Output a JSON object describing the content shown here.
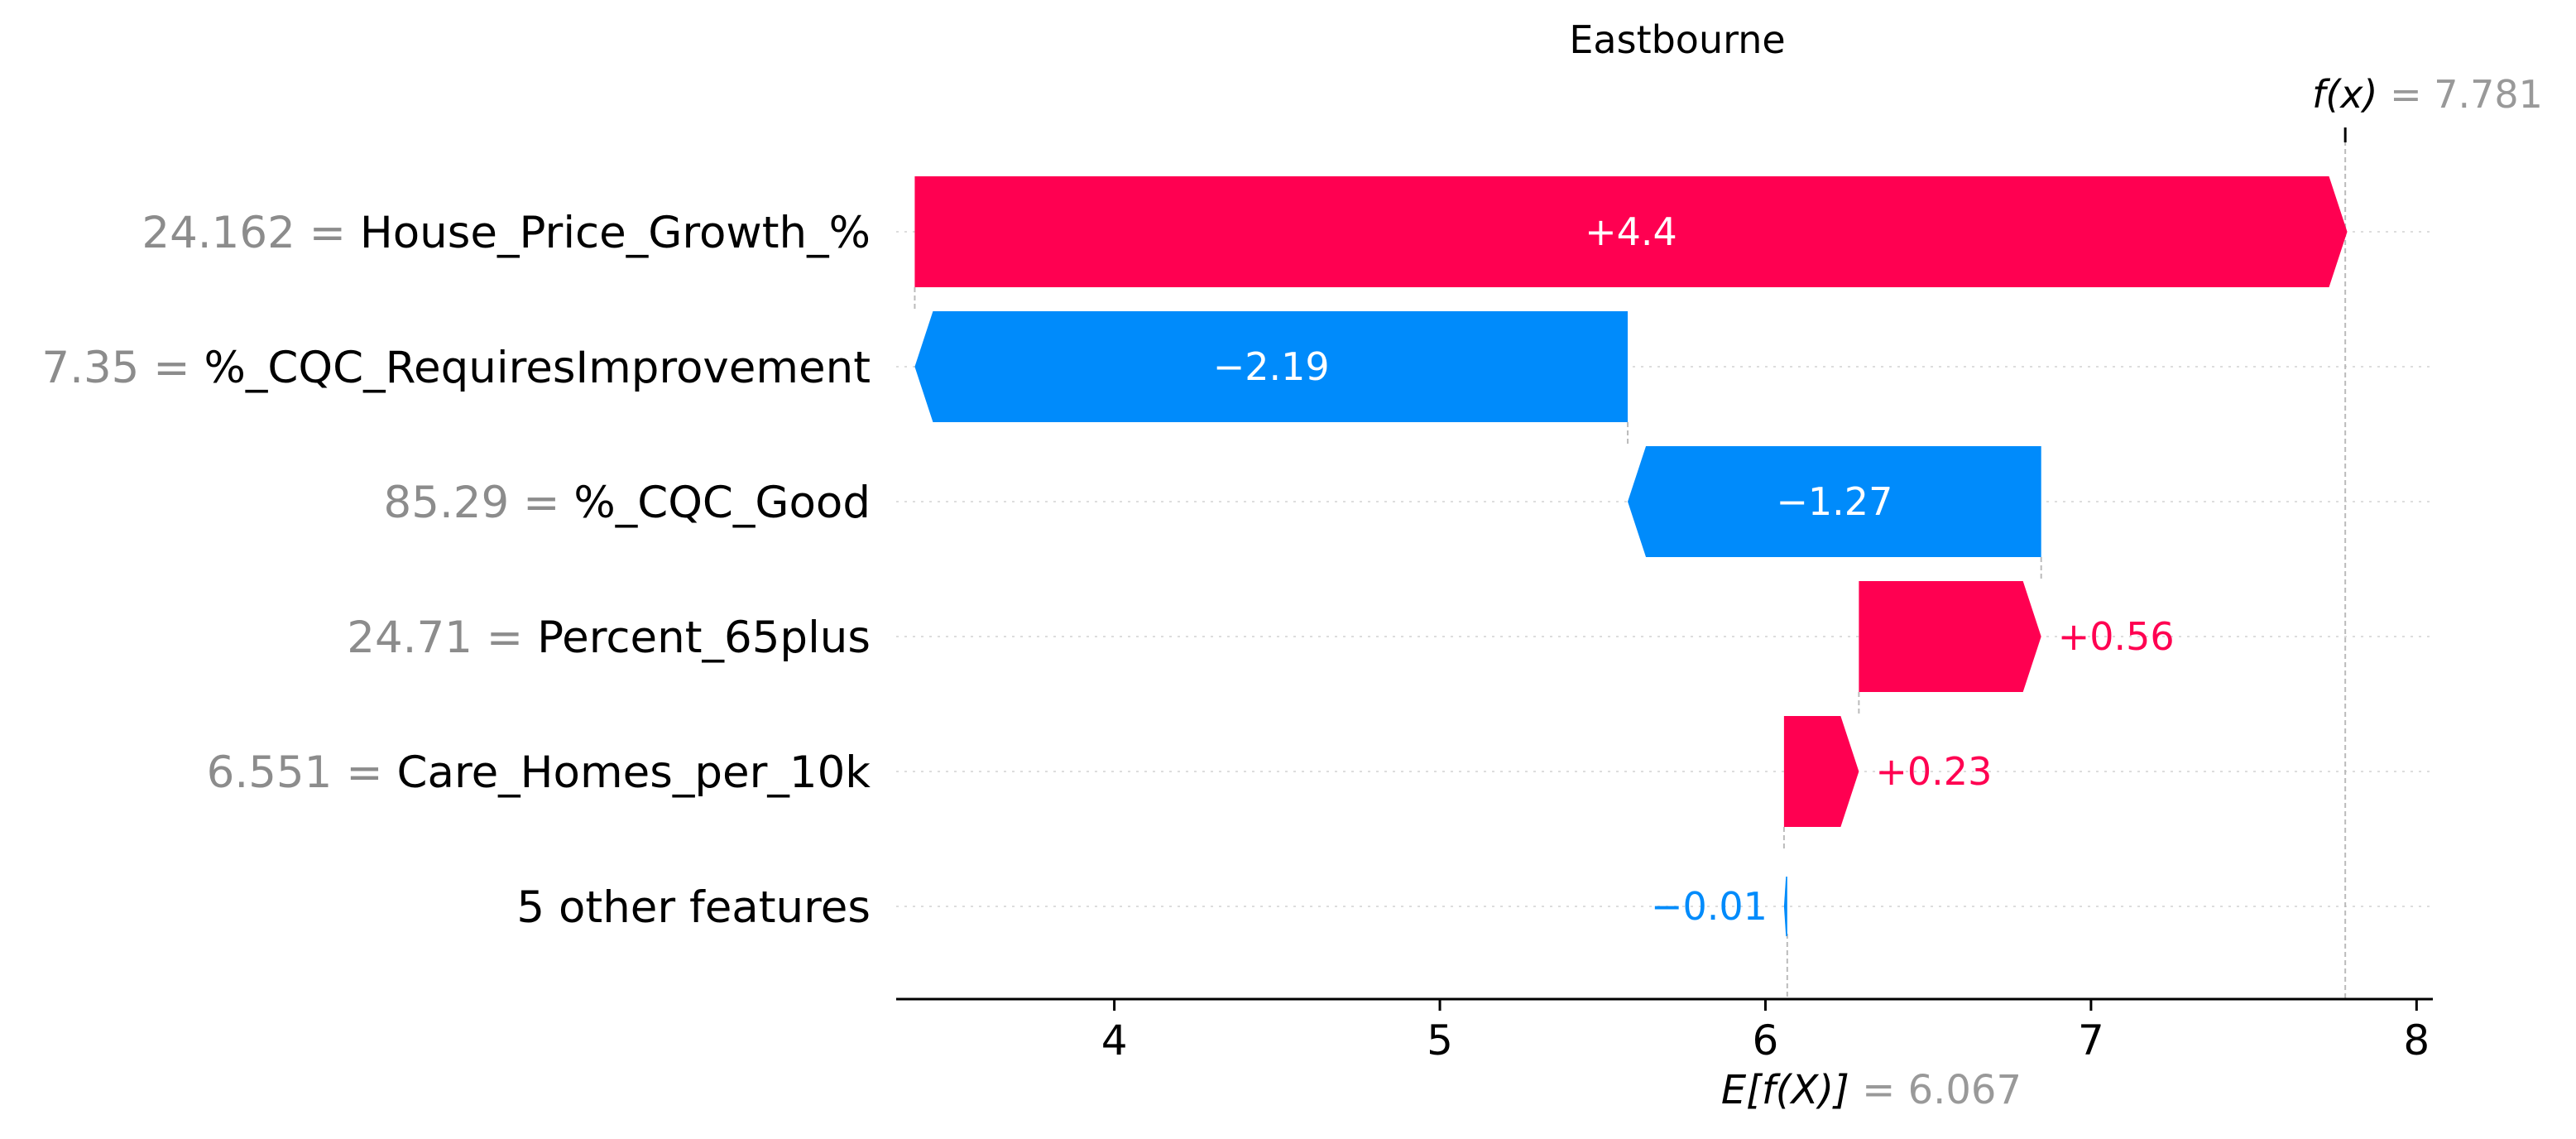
{
  "chart_data": {
    "type": "waterfall",
    "title": "Eastbourne",
    "features": [
      {
        "value_label": "24.162 =",
        "name": "House_Price_Growth_%",
        "contribution": 4.4,
        "label": "+4.4"
      },
      {
        "value_label": "7.35 =",
        "name": "%_CQC_RequiresImprovement",
        "contribution": -2.19,
        "label": "−2.19"
      },
      {
        "value_label": "85.29 =",
        "name": "%_CQC_Good",
        "contribution": -1.27,
        "label": "−1.27"
      },
      {
        "value_label": "24.71 =",
        "name": "Percent_65plus",
        "contribution": 0.56,
        "label": "+0.56"
      },
      {
        "value_label": "6.551 =",
        "name": "Care_Homes_per_10k",
        "contribution": 0.23,
        "label": "+0.23"
      },
      {
        "value_label": "",
        "name": "5 other features",
        "contribution": -0.01,
        "label": "−0.01"
      }
    ],
    "expected_value": 6.067,
    "expected_label": {
      "prefix": "E[f(X)]",
      "value": " = 6.067"
    },
    "output_value": 7.781,
    "output_label": {
      "prefix": "f(x)",
      "value": " = 7.781"
    },
    "xlim": [
      3.33,
      8.05
    ],
    "xticks": [
      4,
      5,
      6,
      7,
      8
    ],
    "colors": {
      "positive": "#ff0051",
      "negative": "#008bfb",
      "grid": "#cccccc",
      "dim_text": "#999999"
    }
  }
}
